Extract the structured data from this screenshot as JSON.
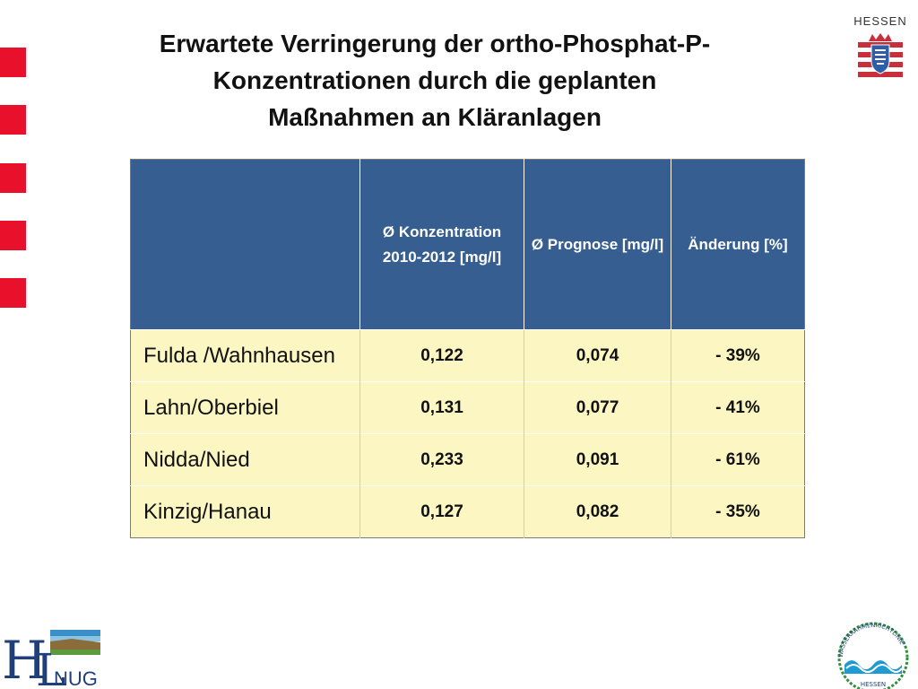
{
  "title": {
    "line1": "Erwartete Verringerung der ortho-Phosphat-P-",
    "line2": "Konzentrationen durch die geplanten",
    "line3": "Maßnahmen an Kläranlagen"
  },
  "logos": {
    "hessen_label": "HESSEN",
    "hlnug_h": "H",
    "hlnug_l": "L",
    "hlnug_rest": "NUG",
    "wrrl_arc": "WASSERRAHMENRICHTLINIE",
    "wrrl_bottom": "HESSEN"
  },
  "table": {
    "headers": [
      "",
      "Ø Konzentration 2010-2012 [mg/l]",
      "Ø Prognose [mg/l]",
      "Änderung  [%]"
    ],
    "rows": [
      {
        "name": "Fulda /Wahnhausen",
        "konzentration": "0,122",
        "prognose": "0,074",
        "aenderung": "- 39%"
      },
      {
        "name": "Lahn/Oberbiel",
        "konzentration": "0,131",
        "prognose": "0,077",
        "aenderung": "- 41%"
      },
      {
        "name": "Nidda/Nied",
        "konzentration": "0,233",
        "prognose": "0,091",
        "aenderung": "- 61%"
      },
      {
        "name": "Kinzig/Hanau",
        "konzentration": "0,127",
        "prognose": "0,082",
        "aenderung": "- 35%"
      }
    ]
  },
  "colors": {
    "header_bg": "#365e91",
    "cell_bg": "#fcf6c2",
    "accent_red": "#e8102a"
  }
}
